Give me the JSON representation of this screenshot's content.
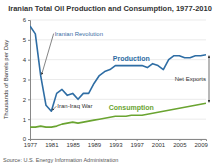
{
  "chart_data": {
    "type": "line",
    "title": "Iranian Total Oil Production and Consumption, 1977-2010",
    "y_label": "Thousands of Barrels per Day",
    "source": "Source: U.S. Energy Information Administration",
    "x": [
      1977,
      1978,
      1979,
      1980,
      1981,
      1982,
      1983,
      1984,
      1985,
      1986,
      1987,
      1988,
      1989,
      1990,
      1991,
      1992,
      1993,
      1994,
      1995,
      1996,
      1997,
      1998,
      1999,
      2000,
      2001,
      2002,
      2003,
      2004,
      2005,
      2006,
      2007,
      2008,
      2009,
      2010
    ],
    "series": [
      {
        "name": "Production",
        "color": "#2e6da4",
        "values": [
          5.7,
          5.3,
          3.2,
          1.7,
          1.4,
          2.3,
          2.5,
          2.2,
          2.3,
          2.0,
          2.3,
          2.3,
          2.8,
          3.2,
          3.4,
          3.5,
          3.7,
          3.7,
          3.7,
          3.7,
          3.7,
          3.7,
          3.6,
          3.8,
          3.7,
          3.5,
          4.0,
          4.2,
          4.2,
          4.1,
          4.1,
          4.2,
          4.2,
          4.25
        ]
      },
      {
        "name": "Consumption",
        "color": "#6aa431",
        "values": [
          0.6,
          0.6,
          0.65,
          0.6,
          0.6,
          0.65,
          0.75,
          0.8,
          0.85,
          0.8,
          0.85,
          0.9,
          0.95,
          1.0,
          1.05,
          1.1,
          1.15,
          1.15,
          1.15,
          1.2,
          1.2,
          1.2,
          1.25,
          1.3,
          1.35,
          1.4,
          1.45,
          1.5,
          1.55,
          1.6,
          1.65,
          1.7,
          1.75,
          1.8
        ]
      }
    ],
    "xlim": [
      1977,
      2010
    ],
    "xticks": [
      1977,
      1981,
      1985,
      1989,
      1993,
      1997,
      2001,
      2005,
      2009
    ],
    "ylim": [
      0,
      6
    ],
    "yticks": [
      0,
      1,
      2,
      3,
      4,
      5,
      6
    ],
    "grid": true,
    "annotations": [
      {
        "text": "Iranian Revolution",
        "x": 1979,
        "y": 3.2
      },
      {
        "text": "Iran-Iraq War",
        "x": 1981,
        "y": 1.4
      },
      {
        "text": "Net Exports",
        "x": 2010
      }
    ]
  }
}
